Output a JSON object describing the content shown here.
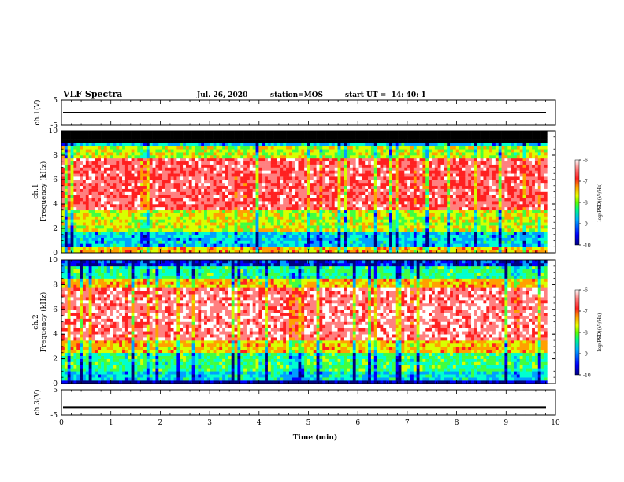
{
  "header": {
    "title": "VLF Spectra",
    "date": "Jul. 26, 2020",
    "station": "station=MOS",
    "start_time": "start UT =  14: 40: 1"
  },
  "chart_data": [
    {
      "type": "line",
      "panel": "ch1-waveform",
      "ylabel": "ch.1(V)",
      "ylim": [
        -5,
        5
      ],
      "y_ticks": [
        "5",
        "-5"
      ],
      "xlim": [
        0,
        10
      ],
      "series": [
        {
          "values": [
            0.0,
            0.0
          ]
        }
      ]
    },
    {
      "type": "heatmap",
      "panel": "ch1-spectrogram",
      "ylabel_line1": "ch.1",
      "ylabel_line2": "Frequency (kHz)",
      "ylim": [
        0,
        10
      ],
      "y_ticks": [
        "0",
        "2",
        "4",
        "6",
        "8",
        "10"
      ],
      "xlim": [
        0,
        10
      ],
      "data_end_min": 9.83,
      "saturated_above_khz": 9.0,
      "colorbar": {
        "label": "log(PSD)(V²/Hz)",
        "range": [
          -10,
          -6
        ],
        "ticks": [
          "-6",
          "-7",
          "-8",
          "-9",
          "-10"
        ]
      }
    },
    {
      "type": "heatmap",
      "panel": "ch2-spectrogram",
      "ylabel_line1": "ch.2",
      "ylabel_line2": "Frequency (kHz)",
      "ylim": [
        0,
        10
      ],
      "y_ticks": [
        "0",
        "2",
        "4",
        "6",
        "8",
        "10"
      ],
      "xlim": [
        0,
        10
      ],
      "data_end_min": 9.83,
      "colorbar": {
        "label": "log(PSD)(V²/Hz)",
        "range": [
          -10,
          -6
        ],
        "ticks": [
          "-6",
          "-7",
          "-8",
          "-9",
          "-10"
        ]
      }
    },
    {
      "type": "line",
      "panel": "ch3-waveform",
      "ylabel": "ch.3(V)",
      "ylim": [
        -5,
        5
      ],
      "y_ticks": [
        "5",
        "-5"
      ],
      "xlim": [
        0,
        10
      ],
      "xlabel": "Time (min)",
      "x_ticks": [
        "0",
        "1",
        "2",
        "3",
        "4",
        "5",
        "6",
        "7",
        "8",
        "9",
        "10"
      ],
      "series": [
        {
          "values": [
            -2.0,
            -2.0
          ]
        }
      ]
    }
  ],
  "colors": {
    "colormap": [
      "#00007f",
      "#0000ff",
      "#00a0ff",
      "#00ffd0",
      "#40ff40",
      "#d8ff00",
      "#ffa000",
      "#ff2020",
      "#ff8080",
      "#ffffff"
    ],
    "saturation": "#000000",
    "trace": "#000000"
  }
}
